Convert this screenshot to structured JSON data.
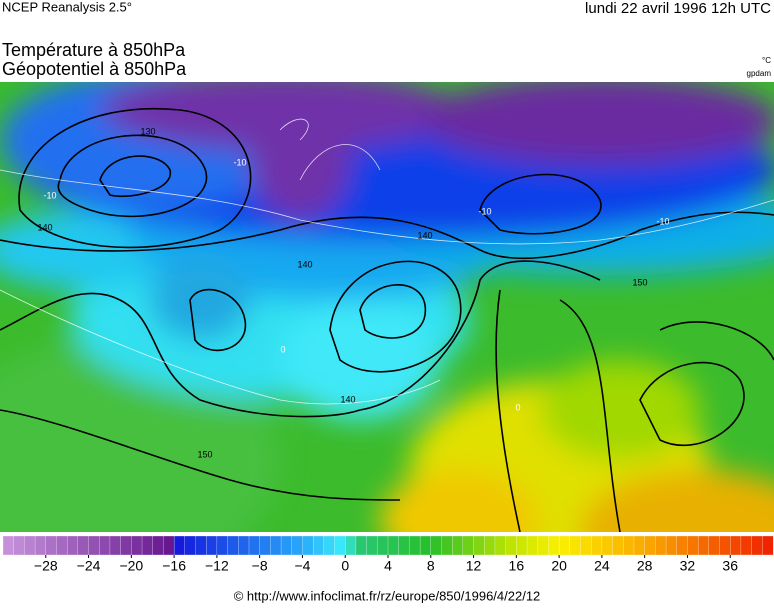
{
  "header": {
    "source": "NCEP Reanalysis 2.5°",
    "date": "lundi 22 avril 1996 12h UTC",
    "title_line1": "Température à 850hPa",
    "title_line2": "Géopotentiel à 850hPa",
    "unit_temp": "°C",
    "unit_geo": "gpdam"
  },
  "map": {
    "contour_labels": [
      "130",
      "140",
      "140",
      "140",
      "150",
      "150",
      "140",
      "-10",
      "-10",
      "-10",
      "-10",
      "0",
      "0"
    ]
  },
  "colorbar": {
    "range": [
      -32,
      40
    ],
    "ticks": [
      {
        "value": -28,
        "label": "−28"
      },
      {
        "value": -24,
        "label": "−24"
      },
      {
        "value": -20,
        "label": "−20"
      },
      {
        "value": -16,
        "label": "−16"
      },
      {
        "value": -12,
        "label": "−12"
      },
      {
        "value": -8,
        "label": "−8"
      },
      {
        "value": -4,
        "label": "−4"
      },
      0,
      4,
      8,
      12,
      16,
      20,
      24,
      28,
      32,
      36
    ]
  },
  "footer": {
    "credit": "© http://www.infoclimat.fr/rz/europe/850/1996/4/22/12"
  }
}
